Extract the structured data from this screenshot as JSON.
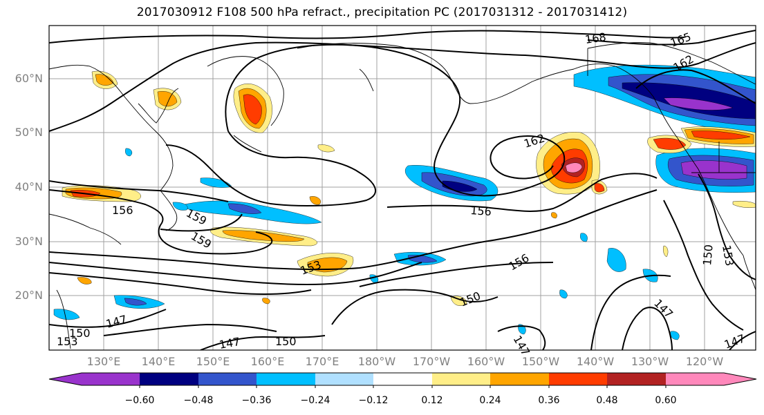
{
  "title": "2017030912 F108 500 hPa refract., precipitation PC (2017031312 - 2017031412)",
  "map": {
    "region": "North Pacific",
    "lat_labels": [
      "60°N",
      "50°N",
      "40°N",
      "30°N",
      "20°N"
    ],
    "lon_labels": [
      "130°E",
      "140°E",
      "150°E",
      "160°E",
      "170°E",
      "180°W",
      "170°W",
      "160°W",
      "150°W",
      "140°W",
      "130°W",
      "120°W"
    ],
    "contour_labels": [
      "168",
      "165",
      "162",
      "162",
      "159",
      "159",
      "156",
      "156",
      "156",
      "153",
      "153",
      "150",
      "150",
      "150",
      "150",
      "147",
      "147",
      "147",
      "147",
      "147",
      "153"
    ],
    "colors": {
      "contour": "#000000",
      "coast": "#000000",
      "grid": "#a0a0a0"
    }
  },
  "colorbar": {
    "ticks": [
      "−0.60",
      "−0.48",
      "−0.36",
      "−0.24",
      "−0.12",
      "0.12",
      "0.24",
      "0.36",
      "0.48",
      "0.60"
    ],
    "colors": [
      "#9933cc",
      "#000080",
      "#3355cc",
      "#00bfff",
      "#b0e0ff",
      "#ffffff",
      "#ffee88",
      "#ffa500",
      "#ff3c00",
      "#b22222",
      "#ff88bb"
    ]
  }
}
